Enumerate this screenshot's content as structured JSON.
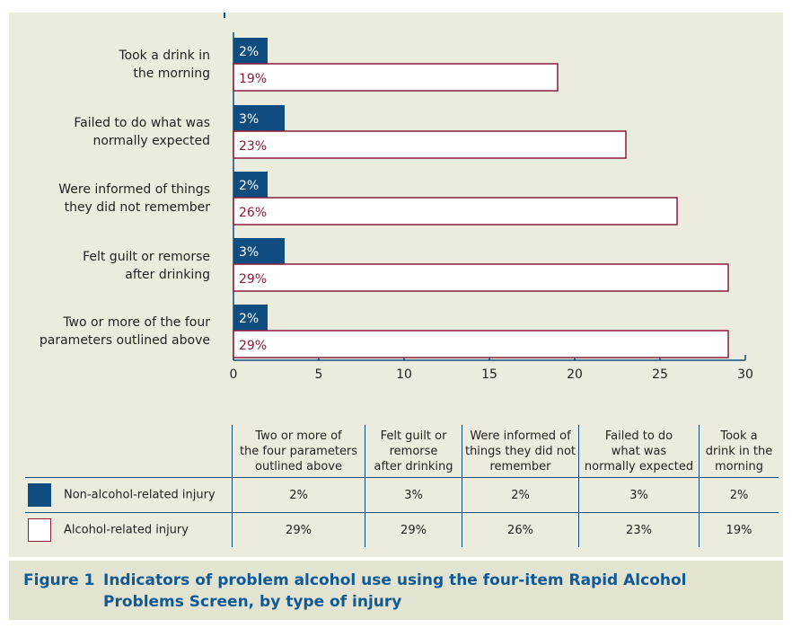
{
  "colors": {
    "background": "#ebebde",
    "non_alcohol_fill": "#0f4d81",
    "alcohol_fill": "#ffffff",
    "alcohol_border": "#8a1c3a",
    "axis": "#0f4d81",
    "caption_text": "#0f5a96"
  },
  "chart_data": {
    "type": "bar",
    "orientation": "horizontal",
    "categories": [
      "Took a drink in\nthe morning",
      "Failed to do what was\nnormally expected",
      "Were informed of things\nthey did not remember",
      "Felt guilt or remorse\nafter drinking",
      "Two or more of the four\nparameters outlined above"
    ],
    "series": [
      {
        "name": "Non-alcohol-related injury",
        "values": [
          2,
          3,
          2,
          3,
          2
        ],
        "labels": [
          "2%",
          "3%",
          "2%",
          "3%",
          "2%"
        ],
        "color": "#0f4d81"
      },
      {
        "name": "Alcohol-related injury",
        "values": [
          19,
          23,
          26,
          29,
          29
        ],
        "labels": [
          "19%",
          "23%",
          "26%",
          "29%",
          "29%"
        ],
        "color": "#ffffff"
      }
    ],
    "xlim": [
      0,
      30
    ],
    "xticks": [
      0,
      5,
      10,
      15,
      20,
      25,
      30
    ],
    "grid": false
  },
  "table": {
    "columns": [
      "Two or more of\nthe four parameters\noutlined above",
      "Felt guilt or\nremorse\nafter drinking",
      "Were informed of\nthings they did not\nremember",
      "Failed to do\nwhat was\nnormally expected",
      "Took a\ndrink in the\nmorning"
    ],
    "rows": [
      {
        "label": "Non-alcohol-related injury",
        "values": [
          "2%",
          "3%",
          "2%",
          "3%",
          "2%"
        ]
      },
      {
        "label": "Alcohol-related injury",
        "values": [
          "29%",
          "29%",
          "26%",
          "23%",
          "19%"
        ]
      }
    ]
  },
  "caption": {
    "figure_number": "Figure 1",
    "title": "Indicators of problem alcohol use using the four-item Rapid Alcohol\nProblems Screen, by type of injury"
  }
}
